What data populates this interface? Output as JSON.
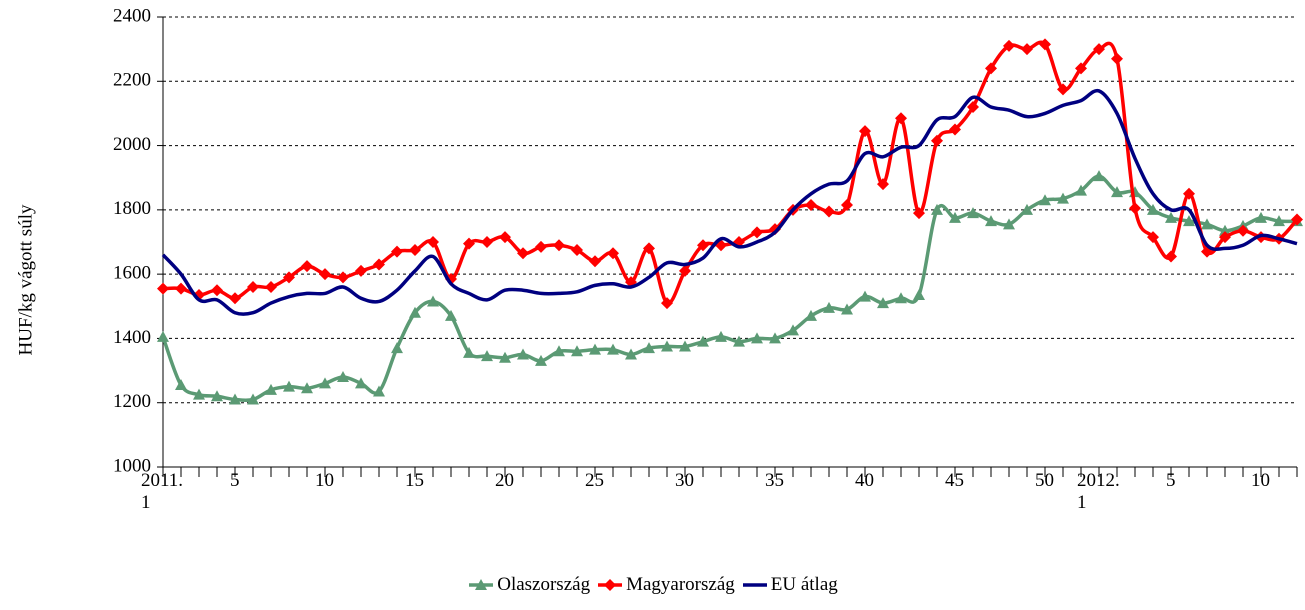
{
  "chart_data": {
    "type": "line",
    "y_label": "HUF/kg vágott súly",
    "categories": [
      "2011. 1",
      null,
      null,
      null,
      "5",
      null,
      null,
      null,
      null,
      "10",
      null,
      null,
      null,
      null,
      "15",
      null,
      null,
      null,
      null,
      "20",
      null,
      null,
      null,
      null,
      "25",
      null,
      null,
      null,
      null,
      "30",
      null,
      null,
      null,
      null,
      "35",
      null,
      null,
      null,
      null,
      "40",
      null,
      null,
      null,
      null,
      "45",
      null,
      null,
      null,
      null,
      "50",
      null,
      null,
      "2012. 1",
      null,
      null,
      null,
      "5",
      null,
      null,
      null,
      null,
      "10",
      null,
      null
    ],
    "series": [
      {
        "name": "Olaszország",
        "color": "#5b9a74",
        "marker": "triangle",
        "values": [
          1405,
          1255,
          1225,
          1220,
          1210,
          1210,
          1240,
          1250,
          1245,
          1260,
          1280,
          1260,
          1235,
          1370,
          1480,
          1515,
          1470,
          1355,
          1345,
          1340,
          1350,
          1330,
          1360,
          1360,
          1365,
          1365,
          1350,
          1370,
          1375,
          1375,
          1390,
          1405,
          1390,
          1400,
          1400,
          1425,
          1470,
          1495,
          1490,
          1530,
          1510,
          1525,
          1535,
          1800,
          1775,
          1790,
          1765,
          1755,
          1800,
          1830,
          1835,
          1860,
          1905,
          1855,
          1855,
          1800,
          1775,
          1765,
          1755,
          1735,
          1750,
          1775,
          1765,
          1765
        ]
      },
      {
        "name": "Magyarország",
        "color": "#ff0000",
        "marker": "diamond",
        "values": [
          1555,
          1555,
          1535,
          1550,
          1525,
          1560,
          1560,
          1590,
          1625,
          1600,
          1590,
          1610,
          1630,
          1670,
          1675,
          1700,
          1585,
          1695,
          1700,
          1715,
          1665,
          1685,
          1690,
          1675,
          1640,
          1665,
          1575,
          1680,
          1510,
          1610,
          1690,
          1690,
          1700,
          1730,
          1740,
          1800,
          1815,
          1795,
          1815,
          2045,
          1880,
          2085,
          1790,
          2015,
          2050,
          2120,
          2240,
          2310,
          2300,
          2315,
          2175,
          2240,
          2300,
          2270,
          1805,
          1715,
          1655,
          1850,
          1670,
          1715,
          1735,
          1715,
          1710,
          1770
        ]
      },
      {
        "name": "EU átlag",
        "color": "#000080",
        "marker": "none",
        "values": [
          1660,
          1600,
          1520,
          1520,
          1480,
          1480,
          1510,
          1530,
          1540,
          1540,
          1560,
          1525,
          1515,
          1550,
          1610,
          1655,
          1570,
          1540,
          1520,
          1550,
          1550,
          1540,
          1540,
          1545,
          1565,
          1570,
          1560,
          1590,
          1635,
          1630,
          1650,
          1710,
          1685,
          1700,
          1730,
          1800,
          1850,
          1880,
          1890,
          1975,
          1965,
          1995,
          2000,
          2080,
          2090,
          2150,
          2120,
          2110,
          2090,
          2100,
          2125,
          2140,
          2170,
          2100,
          1960,
          1850,
          1800,
          1800,
          1690,
          1680,
          1690,
          1720,
          1710,
          1695
        ]
      }
    ],
    "ylim": [
      1000,
      2400
    ],
    "yticks": [
      1000,
      1200,
      1400,
      1600,
      1800,
      2000,
      2200,
      2400
    ],
    "grid": true,
    "legend": "bottom"
  }
}
